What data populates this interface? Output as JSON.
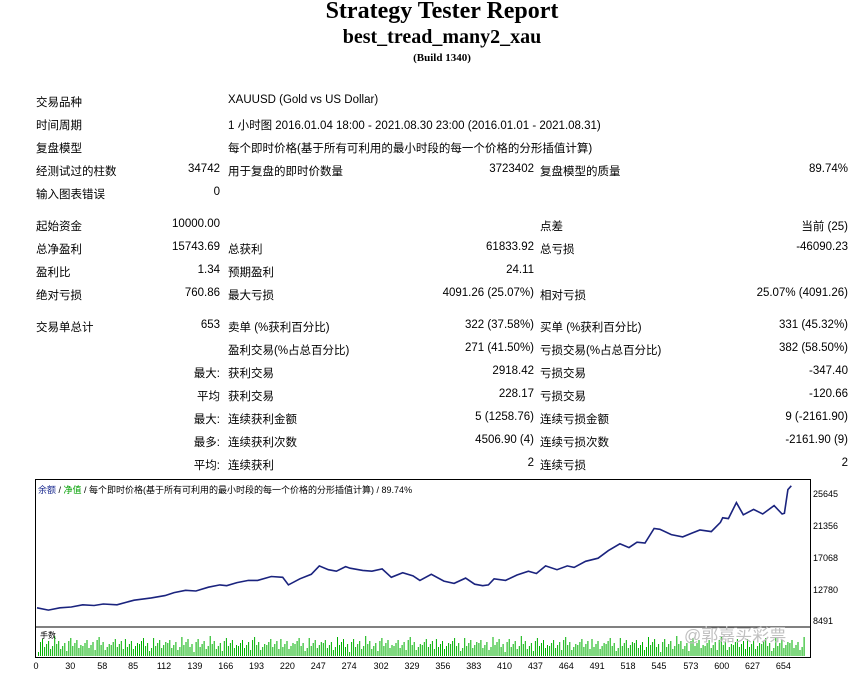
{
  "report": {
    "title": "Strategy Tester Report",
    "ea_name": "best_tread_many2_xau",
    "build": "(Build 1340)"
  },
  "summary": {
    "symbol_label": "交易品种",
    "symbol_value": "XAUUSD (Gold vs US Dollar)",
    "period_label": "时间周期",
    "period_value": "1 小时图 2016.01.04 18:00 - 2021.08.30 23:00 (2016.01.01 - 2021.08.31)",
    "model_label": "复盘模型",
    "model_value": "每个即时价格(基于所有可利用的最小时段的每一个价格的分形插值计算)",
    "bars_label": "经测试过的柱数",
    "bars_value": "34742",
    "ticks_label": "用于复盘的即时价数量",
    "ticks_value": "3723402",
    "quality_label": "复盘模型的质量",
    "quality_value": "89.74%",
    "errors_label": "输入图表错误",
    "errors_value": "0",
    "deposit_label": "起始资金",
    "deposit_value": "10000.00",
    "spread_label": "点差",
    "spread_value": "当前 (25)",
    "net_label": "总净盈利",
    "net_value": "15743.69",
    "gross_profit_label": "总获利",
    "gross_profit_value": "61833.92",
    "gross_loss_label": "总亏损",
    "gross_loss_value": "-46090.23",
    "pf_label": "盈利比",
    "pf_value": "1.34",
    "expected_label": "预期盈利",
    "expected_value": "24.11",
    "abs_dd_label": "绝对亏损",
    "abs_dd_value": "760.86",
    "max_dd_label": "最大亏损",
    "max_dd_value": "4091.26 (25.07%)",
    "rel_dd_label": "相对亏损",
    "rel_dd_value": "25.07% (4091.26)",
    "trades_label": "交易单总计",
    "trades_value": "653",
    "short_label": "卖单 (%获利百分比)",
    "short_value": "322 (37.58%)",
    "long_label": "买单 (%获利百分比)",
    "long_value": "331 (45.32%)",
    "profit_trades_label": "盈利交易(%占总百分比)",
    "profit_trades_value": "271 (41.50%)",
    "loss_trades_label": "亏损交易(%占总百分比)",
    "loss_trades_value": "382 (58.50%)",
    "largest_prefix": "最大:",
    "largest_profit_label": "获利交易",
    "largest_profit_value": "2918.42",
    "largest_loss_label": "亏损交易",
    "largest_loss_value": "-347.40",
    "avg_prefix": "平均",
    "avg_profit_label": "获利交易",
    "avg_profit_value": "228.17",
    "avg_loss_label": "亏损交易",
    "avg_loss_value": "-120.66",
    "max_prefix": "最大:",
    "max_cons_wins_label": "连续获利金额",
    "max_cons_wins_value": "5 (1258.76)",
    "max_cons_losses_label": "连续亏损金额",
    "max_cons_losses_value": "9 (-2161.90)",
    "most_prefix": "最多:",
    "max_cons_profit_label": "连续获利次数",
    "max_cons_profit_value": "4506.90 (4)",
    "max_cons_loss_label": "连续亏损次数",
    "max_cons_loss_value": "-2161.90 (9)",
    "avgc_prefix": "平均:",
    "avg_cons_wins_label": "连续获利",
    "avg_cons_wins_value": "2",
    "avg_cons_losses_label": "连续亏损",
    "avg_cons_losses_value": "2"
  },
  "chart_legend": {
    "balance": "余额",
    "sep1": " / ",
    "equity": "净值",
    "rest": " / 每个即时价格(基于所有可利用的最小时段的每一个价格的分形插值计算) / 89.74%"
  },
  "volume_label": "手数",
  "watermark": "@郭嘉买彩票",
  "colors": {
    "balance_line": "#1a237e",
    "volume_bars": "#00b000"
  },
  "chart_data": {
    "type": "line",
    "title": "",
    "xlabel": "",
    "ylabel": "",
    "y_ticks": [
      "25645",
      "21356",
      "17068",
      "12780",
      "8491"
    ],
    "x_ticks": [
      "0",
      "30",
      "58",
      "85",
      "112",
      "139",
      "166",
      "193",
      "220",
      "247",
      "274",
      "302",
      "329",
      "356",
      "383",
      "410",
      "437",
      "464",
      "491",
      "518",
      "545",
      "573",
      "600",
      "627",
      "654"
    ],
    "xlim": [
      0,
      672
    ],
    "ylim": [
      8200,
      26300
    ],
    "grid": false,
    "series": [
      {
        "name": "余额",
        "x": [
          0,
          10,
          20,
          30,
          40,
          50,
          58,
          70,
          80,
          85,
          95,
          100,
          112,
          120,
          130,
          139,
          150,
          160,
          166,
          175,
          185,
          193,
          205,
          215,
          220,
          230,
          240,
          247,
          255,
          262,
          270,
          274,
          285,
          293,
          302,
          310,
          320,
          329,
          335,
          345,
          356,
          365,
          375,
          383,
          390,
          395,
          400,
          410,
          420,
          430,
          437,
          445,
          455,
          464,
          470,
          480,
          491,
          500,
          510,
          518,
          525,
          532,
          540,
          545,
          555,
          565,
          573,
          580,
          590,
          598,
          600,
          605,
          612,
          618,
          627,
          635,
          645,
          652,
          654,
          657,
          660
        ],
        "y": [
          9800,
          9500,
          9800,
          9900,
          10200,
          10100,
          10300,
          10200,
          10600,
          10800,
          11000,
          11100,
          11400,
          11800,
          12100,
          12000,
          12500,
          12800,
          12700,
          13100,
          13400,
          13400,
          13900,
          13800,
          12800,
          13600,
          14200,
          15300,
          14800,
          14600,
          15200,
          15000,
          14700,
          14600,
          14900,
          13800,
          14400,
          14000,
          13400,
          14200,
          13300,
          13000,
          13700,
          12900,
          12700,
          12800,
          13600,
          13400,
          14100,
          14600,
          14300,
          15300,
          14800,
          15300,
          15100,
          15900,
          16300,
          17300,
          18200,
          17700,
          18400,
          18300,
          20200,
          20100,
          19400,
          19100,
          19600,
          20000,
          19800,
          21000,
          21600,
          21500,
          23600,
          22000,
          22700,
          22100,
          23200,
          22100,
          22200,
          25300,
          25800
        ]
      }
    ]
  }
}
